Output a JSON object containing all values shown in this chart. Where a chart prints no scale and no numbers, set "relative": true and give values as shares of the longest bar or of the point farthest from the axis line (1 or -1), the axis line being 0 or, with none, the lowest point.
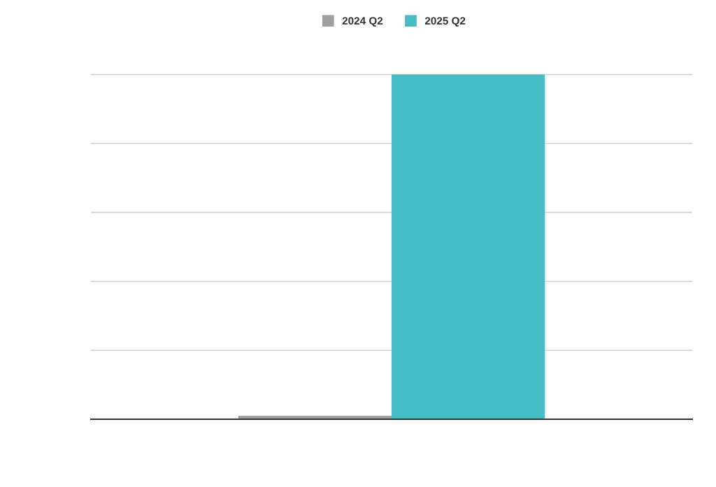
{
  "chart_data": {
    "type": "bar",
    "relative": true,
    "categories": [
      null
    ],
    "series": [
      {
        "name": "2024 Q2",
        "color": "#a0a0a0",
        "values": [
          0.01
        ]
      },
      {
        "name": "2025 Q2",
        "color": "#47bcc6",
        "values": [
          1
        ]
      }
    ],
    "grid": "y",
    "legend": "top"
  }
}
